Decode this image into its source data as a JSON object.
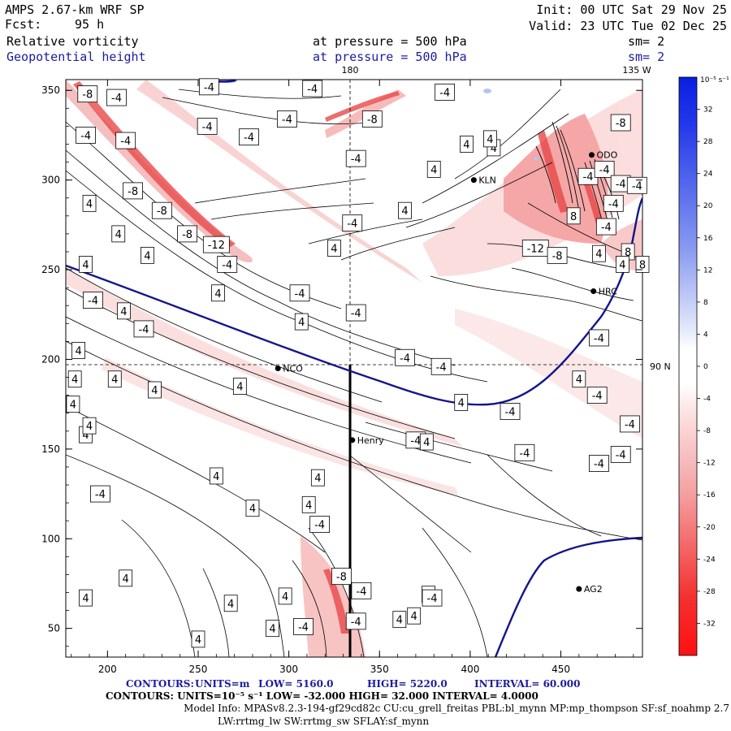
{
  "header": {
    "model": "AMPS 2.67-km WRF SP",
    "forecast_label": "Fcst:",
    "forecast_value": "95 h",
    "init": "Init: 00 UTC Sat 29 Nov 25",
    "valid": "Valid: 23 UTC Tue 02 Dec 25",
    "field1_name": "Relative vorticity",
    "field1_level": "at pressure =  500 hPa",
    "field1_sm": "sm= 2",
    "field2_name": "Geopotential height",
    "field2_level": "at pressure =  500 hPa",
    "field2_sm": "sm= 2"
  },
  "map_labels": {
    "lon_180": "180",
    "lon_135w": "135 W",
    "lat_90n": "90 N",
    "stations": [
      "NCO",
      "Henry",
      "KLN",
      "ODO",
      "HRC",
      "AG2"
    ]
  },
  "colorbar": {
    "unit": "10⁻⁵ s⁻¹",
    "levels": [
      "32",
      "28",
      "24",
      "20",
      "16",
      "12",
      "8",
      "4",
      "0",
      "-4",
      "-8",
      "-12",
      "-16",
      "-20",
      "-24",
      "-28",
      "-32"
    ],
    "colors": {
      "pos_max": "#0a1ee0",
      "neg_max": "#ff1010",
      "mid": "#ffffff",
      "height_contour": "#14148c"
    }
  },
  "footer": {
    "line1_head": "CONTOURS:",
    "line1_units": "UNITS=m",
    "line1_low": "LOW=   5160.0",
    "line1_high": "HIGH=   5220.0",
    "line1_interval": "INTERVAL=    60.000",
    "line2": "CONTOURS:  UNITS=10⁻⁵ s⁻¹  LOW=  -32.000       HIGH=  32.000        INTERVAL=    4.0000",
    "line3": "Model Info: MPASv8.2.3-194-gf29cd82c CU:cu_grell_freitas PBL:bl_mynn MP:mp_thompson SF:sf_noahmp 2.7",
    "line4": "LW:rrtmg_lw SW:rrtmg_sw SFLAY:sf_mynn"
  },
  "chart_data": {
    "type": "heatmap",
    "description_fields": [
      "Relative vorticity",
      "Geopotential height"
    ],
    "x_ticks": [
      200,
      250,
      300,
      350,
      400,
      450
    ],
    "y_ticks": [
      50,
      100,
      150,
      200,
      250,
      300,
      350
    ],
    "xlim": [
      177,
      495
    ],
    "ylim": [
      34,
      356
    ],
    "contour_labels": [
      {
        "x": 189,
        "y": 348,
        "v": "-8"
      },
      {
        "x": 205,
        "y": 346,
        "v": "-4"
      },
      {
        "x": 188,
        "y": 325,
        "v": "-4"
      },
      {
        "x": 210,
        "y": 322,
        "v": "-4"
      },
      {
        "x": 256,
        "y": 352,
        "v": "-4"
      },
      {
        "x": 255,
        "y": 330,
        "v": "-4"
      },
      {
        "x": 278,
        "y": 324,
        "v": "-4"
      },
      {
        "x": 299,
        "y": 334,
        "v": "-4"
      },
      {
        "x": 313,
        "y": 351,
        "v": "-4"
      },
      {
        "x": 346,
        "y": 334,
        "v": "-8"
      },
      {
        "x": 386,
        "y": 349,
        "v": "-4"
      },
      {
        "x": 337,
        "y": 312,
        "v": "-4"
      },
      {
        "x": 190,
        "y": 287,
        "v": "4"
      },
      {
        "x": 214,
        "y": 294,
        "v": "-8"
      },
      {
        "x": 230,
        "y": 283,
        "v": "-8"
      },
      {
        "x": 244,
        "y": 270,
        "v": "-8"
      },
      {
        "x": 260,
        "y": 264,
        "v": "-12"
      },
      {
        "x": 206,
        "y": 270,
        "v": "4"
      },
      {
        "x": 222,
        "y": 258,
        "v": "4"
      },
      {
        "x": 266,
        "y": 253,
        "v": "-4"
      },
      {
        "x": 188,
        "y": 253,
        "v": "4"
      },
      {
        "x": 192,
        "y": 233,
        "v": "-4"
      },
      {
        "x": 209,
        "y": 227,
        "v": "4"
      },
      {
        "x": 220,
        "y": 217,
        "v": "-4"
      },
      {
        "x": 261,
        "y": 237,
        "v": "4"
      },
      {
        "x": 306,
        "y": 237,
        "v": "-4"
      },
      {
        "x": 337,
        "y": 226,
        "v": "-4"
      },
      {
        "x": 307,
        "y": 221,
        "v": "4"
      },
      {
        "x": 325,
        "y": 262,
        "v": "4"
      },
      {
        "x": 335,
        "y": 276,
        "v": "-4"
      },
      {
        "x": 364,
        "y": 283,
        "v": "4"
      },
      {
        "x": 380,
        "y": 306,
        "v": "4"
      },
      {
        "x": 398,
        "y": 320,
        "v": "4"
      },
      {
        "x": 184,
        "y": 205,
        "v": "4"
      },
      {
        "x": 181,
        "y": 175,
        "v": "4"
      },
      {
        "x": 204,
        "y": 189,
        "v": "4"
      },
      {
        "x": 226,
        "y": 183,
        "v": "4"
      },
      {
        "x": 273,
        "y": 185,
        "v": "4"
      },
      {
        "x": 364,
        "y": 201,
        "v": "-4"
      },
      {
        "x": 384,
        "y": 196,
        "v": "-4"
      },
      {
        "x": 395,
        "y": 176,
        "v": "4"
      },
      {
        "x": 422,
        "y": 171,
        "v": "-4"
      },
      {
        "x": 430,
        "y": 148,
        "v": "-4"
      },
      {
        "x": 370,
        "y": 155,
        "v": "-4"
      },
      {
        "x": 376,
        "y": 154,
        "v": "4"
      },
      {
        "x": 436,
        "y": 262,
        "v": "-12"
      },
      {
        "x": 448,
        "y": 258,
        "v": "-8"
      },
      {
        "x": 465,
        "y": 302,
        "v": "-4"
      },
      {
        "x": 474,
        "y": 306,
        "v": "-4"
      },
      {
        "x": 483,
        "y": 298,
        "v": "-4"
      },
      {
        "x": 479,
        "y": 287,
        "v": "-4"
      },
      {
        "x": 475,
        "y": 274,
        "v": "-4"
      },
      {
        "x": 471,
        "y": 259,
        "v": "4"
      },
      {
        "x": 487,
        "y": 260,
        "v": "8"
      },
      {
        "x": 492,
        "y": 297,
        "v": "-4"
      },
      {
        "x": 483,
        "y": 332,
        "v": "-8"
      },
      {
        "x": 457,
        "y": 280,
        "v": "8"
      },
      {
        "x": 413,
        "y": 318,
        "v": "4"
      },
      {
        "x": 411,
        "y": 323,
        "v": "4"
      },
      {
        "x": 495,
        "y": 253,
        "v": "8"
      },
      {
        "x": 484,
        "y": 253,
        "v": "4"
      },
      {
        "x": 471,
        "y": 212,
        "v": "-4"
      },
      {
        "x": 460,
        "y": 189,
        "v": "4"
      },
      {
        "x": 470,
        "y": 180,
        "v": "-4"
      },
      {
        "x": 488,
        "y": 164,
        "v": "-4"
      },
      {
        "x": 471,
        "y": 142,
        "v": "-4"
      },
      {
        "x": 483,
        "y": 147,
        "v": "-4"
      },
      {
        "x": 188,
        "y": 158,
        "v": "4"
      },
      {
        "x": 182,
        "y": 189,
        "v": "4"
      },
      {
        "x": 190,
        "y": 163,
        "v": "4"
      },
      {
        "x": 196,
        "y": 125,
        "v": "-4"
      },
      {
        "x": 260,
        "y": 135,
        "v": "4"
      },
      {
        "x": 280,
        "y": 117,
        "v": "4"
      },
      {
        "x": 311,
        "y": 119,
        "v": "4"
      },
      {
        "x": 316,
        "y": 134,
        "v": "4"
      },
      {
        "x": 317,
        "y": 108,
        "v": "-4"
      },
      {
        "x": 210,
        "y": 78,
        "v": "4"
      },
      {
        "x": 188,
        "y": 67,
        "v": "4"
      },
      {
        "x": 298,
        "y": 68,
        "v": "4"
      },
      {
        "x": 329,
        "y": 79,
        "v": "-8"
      },
      {
        "x": 337,
        "y": 54,
        "v": "-4"
      },
      {
        "x": 340,
        "y": 71,
        "v": "-4"
      },
      {
        "x": 268,
        "y": 64,
        "v": "4"
      },
      {
        "x": 291,
        "y": 50,
        "v": "4"
      },
      {
        "x": 308,
        "y": 51,
        "v": "-4"
      },
      {
        "x": 250,
        "y": 44,
        "v": "4"
      },
      {
        "x": 377,
        "y": 69,
        "v": "4"
      },
      {
        "x": 369,
        "y": 57,
        "v": "4"
      },
      {
        "x": 379,
        "y": 67,
        "v": "-4"
      },
      {
        "x": 361,
        "y": 55,
        "v": "4"
      }
    ],
    "stations": [
      {
        "name": "NCO",
        "x": 294,
        "y": 195
      },
      {
        "name": "Henry",
        "x": 335,
        "y": 155
      },
      {
        "name": "KLN",
        "x": 402,
        "y": 300
      },
      {
        "name": "ODO",
        "x": 467,
        "y": 314
      },
      {
        "name": "HRC",
        "x": 468,
        "y": 238
      },
      {
        "name": "AG2",
        "x": 460,
        "y": 72
      }
    ]
  }
}
